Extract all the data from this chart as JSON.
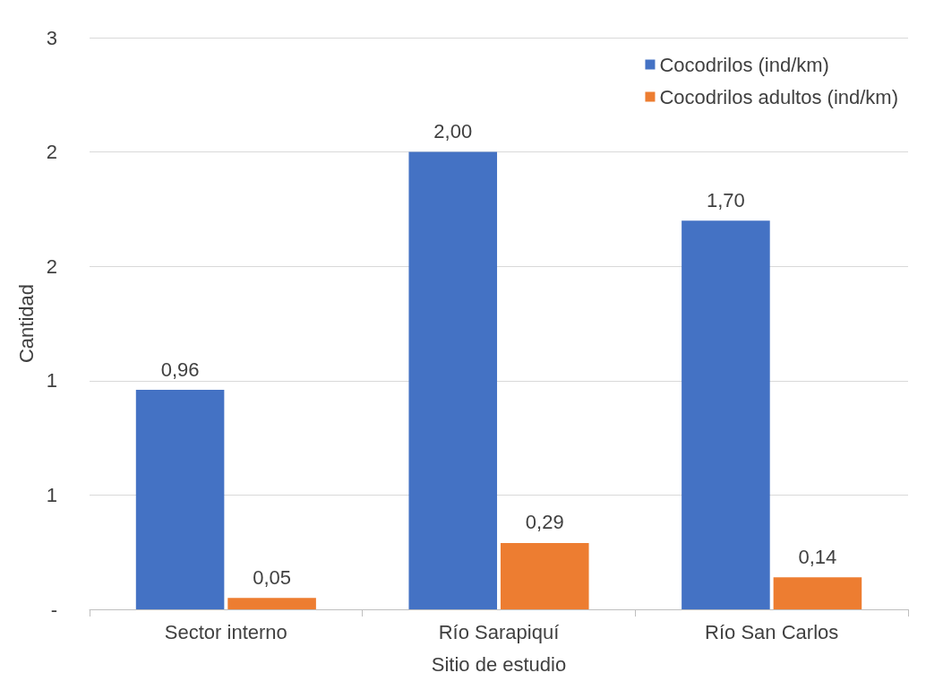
{
  "chart_data": {
    "type": "bar",
    "xlabel": "Sitio de estudio",
    "ylabel": "Cantidad",
    "categories": [
      "Sector interno",
      "Río Sarapiquí",
      "Río San Carlos"
    ],
    "series": [
      {
        "name": "Cocodrilos (ind/km)",
        "color": "#4472c4",
        "values": [
          0.96,
          2.0,
          1.7
        ],
        "value_labels": [
          "0,96",
          "2,00",
          "1,70"
        ]
      },
      {
        "name": "Cocodrilos adultos (ind/km)",
        "color": "#ed7d31",
        "values": [
          0.05,
          0.29,
          0.14
        ],
        "value_labels": [
          "0,05",
          "0,29",
          "0,14"
        ]
      }
    ],
    "ylim": [
      0,
      2.5
    ],
    "yticks": [
      {
        "value": 0,
        "label": "-"
      },
      {
        "value": 0.5,
        "label": "1"
      },
      {
        "value": 1,
        "label": "1"
      },
      {
        "value": 1.5,
        "label": "2"
      },
      {
        "value": 2,
        "label": "2"
      },
      {
        "value": 2.5,
        "label": "3"
      }
    ],
    "grid": "y",
    "legend": "top right"
  }
}
